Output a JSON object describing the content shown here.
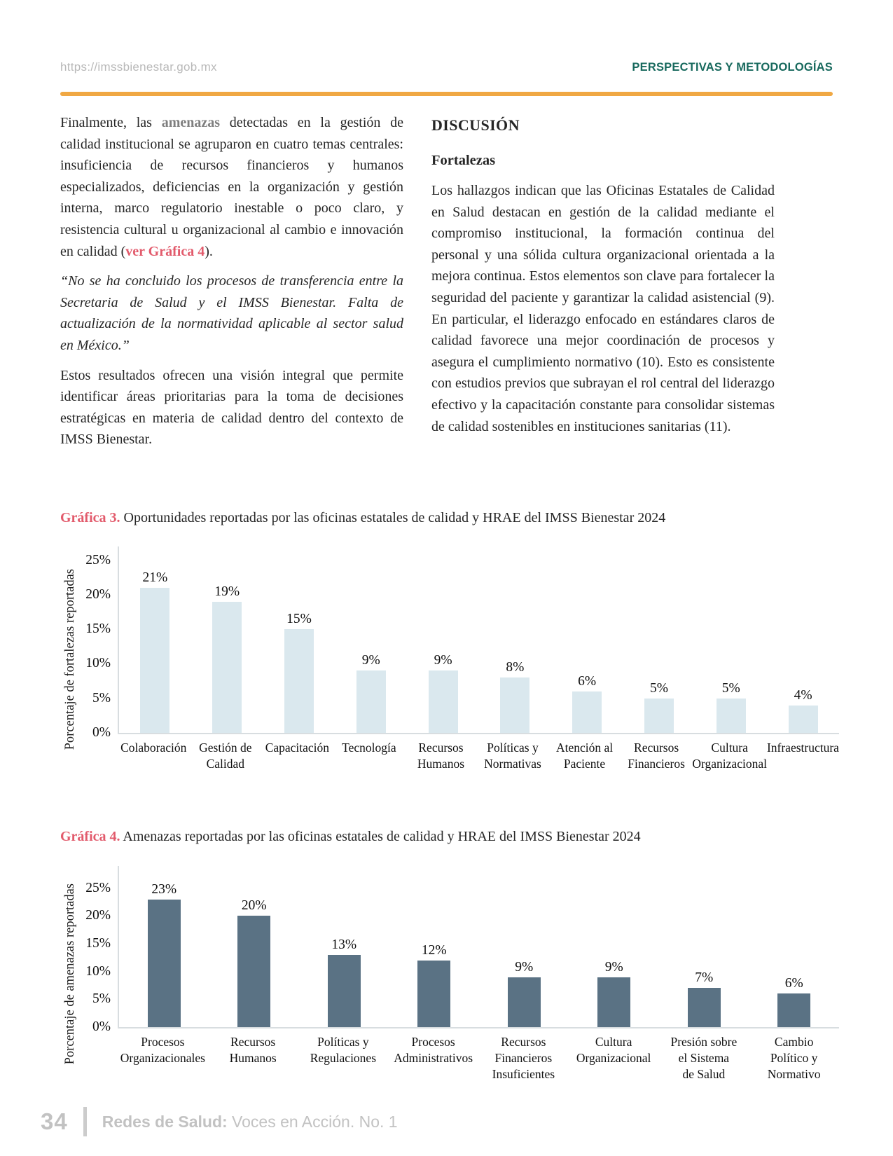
{
  "header": {
    "url": "https://imssbienestar.gob.mx",
    "section": "PERSPECTIVAS Y METODOLOGÍAS"
  },
  "colors": {
    "accent_teal": "#17695D",
    "rule_orange": "#F0A843",
    "reference_pink": "#E25B6C",
    "highlight_gray": "#7F7F7F",
    "chart1_bar": "#DAE8EE",
    "chart2_bar": "#5A7284"
  },
  "left_column": {
    "p1_pre": "Finalmente, las ",
    "p1_highlight": "amenazas",
    "p1_mid": " detectadas en la gestión de calidad institucional se agruparon en cuatro temas centrales: insuficiencia de recursos financieros y humanos especializados, deficiencias en la organización y gestión interna, marco regulatorio inestable o poco claro, y resistencia cultural u organizacional al cambio e innovación en calidad (",
    "p1_link": "ver Gráfica 4",
    "p1_post": ").",
    "quote": "“No se ha concluido los procesos de transferencia entre la Secretaria de Salud y el IMSS Bienestar. Falta de actualización de la normatividad aplicable al sector salud en México.”",
    "p2": "Estos resultados ofrecen una visión integral que permite identificar áreas prioritarias para la toma de decisiones estratégicas en materia de calidad dentro del contexto de IMSS Bienestar."
  },
  "right_column": {
    "heading": "DISCUSIÓN",
    "subheading": "Fortalezas",
    "p1": "Los hallazgos indican que las Oficinas Estatales de Calidad en Salud destacan en gestión de la calidad mediante el compromiso institucional, la formación continua del personal y una sólida cultura organizacional orientada a la mejora continua. Estos elementos son clave para fortalecer la seguridad del paciente y garantizar la calidad asistencial (9). En particular, el liderazgo enfocado en estándares claros de calidad favorece una mejor coordinación de procesos y asegura el cumplimiento normativo (10). Esto es consistente con estudios previos que subrayan el rol central del liderazgo efectivo y la capacitación constante para consolidar sistemas de calidad sostenibles en instituciones sanitarias (11)."
  },
  "chart_data": [
    {
      "type": "bar",
      "title_label": "Gráfica 3.",
      "title_text": " Oportunidades reportadas por las oficinas estatales de calidad y HRAE del IMSS Bienestar 2024",
      "ylabel": "Porcentaje de fortalezas reportadas",
      "xlabel": "",
      "categories": [
        [
          "Colaboración"
        ],
        [
          "Gestión de",
          "Calidad"
        ],
        [
          "Capacitación"
        ],
        [
          "Tecnología"
        ],
        [
          "Recursos",
          "Humanos"
        ],
        [
          "Políticas y",
          "Normativas"
        ],
        [
          "Atención al",
          "Paciente"
        ],
        [
          "Recursos",
          "Financieros"
        ],
        [
          "Cultura",
          "Organizacional"
        ],
        [
          "Infraestructura"
        ]
      ],
      "values": [
        21,
        19,
        15,
        9,
        9,
        8,
        6,
        5,
        5,
        4
      ],
      "value_suffix": "%",
      "yticks": [
        0,
        5,
        10,
        15,
        20,
        25
      ],
      "ylim": [
        0,
        25
      ],
      "grid": false,
      "legend": null,
      "bar_color": "#DAE8EE"
    },
    {
      "type": "bar",
      "title_label": "Gráfica 4.",
      "title_text": " Amenazas reportadas por las oficinas estatales de calidad y HRAE del IMSS Bienestar 2024",
      "ylabel": "Porcentaje de amenazas reportadas",
      "xlabel": "",
      "categories": [
        [
          "Procesos",
          "Organizacionales"
        ],
        [
          "Recursos",
          "Humanos"
        ],
        [
          "Políticas y",
          "Regulaciones"
        ],
        [
          "Procesos",
          "Administrativos"
        ],
        [
          "Recursos",
          "Financieros",
          "Insuficientes"
        ],
        [
          "Cultura",
          "Organizacional"
        ],
        [
          "Presión sobre",
          "el Sistema",
          "de Salud"
        ],
        [
          "Cambio",
          "Político y",
          "Normativo"
        ]
      ],
      "values": [
        23,
        20,
        13,
        12,
        9,
        9,
        7,
        6
      ],
      "value_suffix": "%",
      "yticks": [
        0,
        5,
        10,
        15,
        20,
        25
      ],
      "ylim": [
        0,
        25
      ],
      "grid": false,
      "legend": null,
      "bar_color": "#5A7284"
    }
  ],
  "footer": {
    "page_number": "34",
    "journal_bold": "Redes de Salud:",
    "journal_rest": " Voces en Acción. No. 1"
  }
}
